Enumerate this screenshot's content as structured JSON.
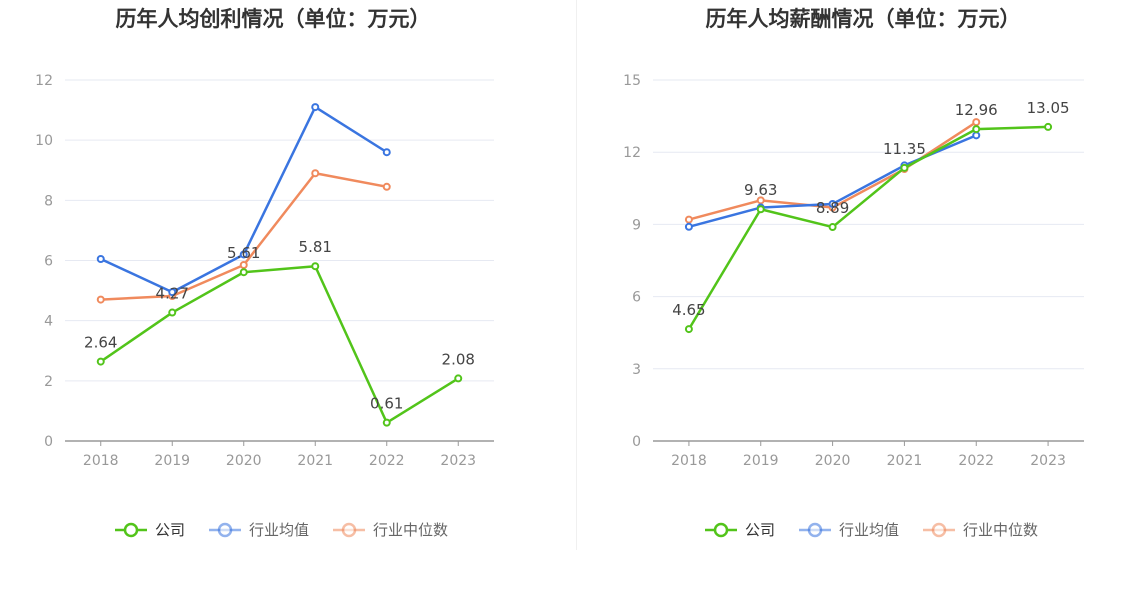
{
  "colors": {
    "company": "#52c41a",
    "industry_avg": "#3a75e0",
    "industry_median": "#f08a5d",
    "grid": "#e6e9f2",
    "axis": "#999999",
    "tick_text": "#999999",
    "label_text": "#444444",
    "title_text": "#333333"
  },
  "chart_data": [
    {
      "type": "line",
      "title": "历年人均创利情况（单位：万元）",
      "categories": [
        "2018",
        "2019",
        "2020",
        "2021",
        "2022",
        "2023"
      ],
      "ylim": [
        0,
        12
      ],
      "yticks": [
        "0",
        "2",
        "4",
        "6",
        "8",
        "10",
        "12"
      ],
      "legend_position": "bottom",
      "grid": true,
      "series": [
        {
          "name": "公司",
          "key": "company",
          "values": [
            2.64,
            4.27,
            5.61,
            5.81,
            0.61,
            2.08
          ],
          "labels": [
            "2.64",
            "4.27",
            "5.61",
            "5.81",
            "0.61",
            "2.08"
          ]
        },
        {
          "name": "行业均值",
          "key": "industry_avg",
          "values": [
            6.05,
            4.95,
            6.2,
            11.1,
            9.6,
            null
          ]
        },
        {
          "name": "行业中位数",
          "key": "industry_median",
          "values": [
            4.7,
            4.82,
            5.85,
            8.9,
            8.45,
            null
          ]
        }
      ]
    },
    {
      "type": "line",
      "title": "历年人均薪酬情况（单位：万元）",
      "categories": [
        "2018",
        "2019",
        "2020",
        "2021",
        "2022",
        "2023"
      ],
      "ylim": [
        0,
        15
      ],
      "yticks": [
        "0",
        "3",
        "6",
        "9",
        "12",
        "15"
      ],
      "legend_position": "bottom",
      "grid": true,
      "series": [
        {
          "name": "公司",
          "key": "company",
          "values": [
            4.65,
            9.63,
            8.89,
            11.35,
            12.96,
            13.05
          ],
          "labels": [
            "4.65",
            "9.63",
            "8.89",
            "11.35",
            "12.96",
            "13.05"
          ]
        },
        {
          "name": "行业均值",
          "key": "industry_avg",
          "values": [
            8.9,
            9.7,
            9.85,
            11.45,
            12.7,
            null
          ]
        },
        {
          "name": "行业中位数",
          "key": "industry_median",
          "values": [
            9.2,
            10.0,
            9.7,
            11.3,
            13.25,
            null
          ]
        }
      ]
    }
  ]
}
